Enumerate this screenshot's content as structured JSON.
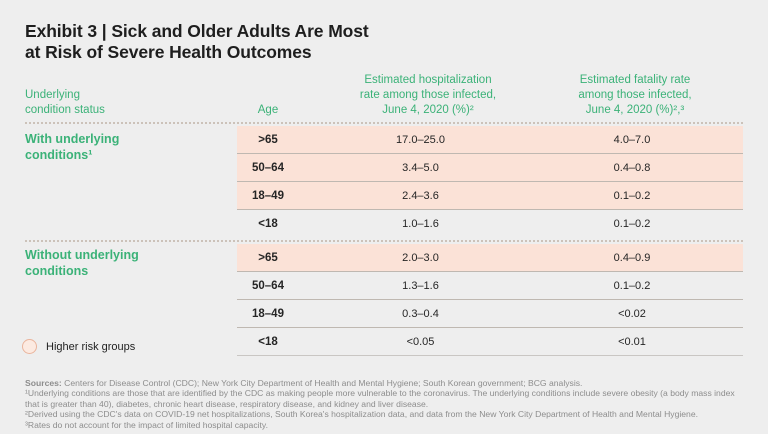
{
  "title": "Exhibit 3 | Sick and Older Adults Are Most\nat Risk of Severe Health Outcomes",
  "colors": {
    "accent_green": "#3bb278",
    "highlight_pink": "#fbe2d7",
    "page_background": "#eeeeee"
  },
  "chart_data": {
    "type": "table",
    "title": "Exhibit 3 | Sick and Older Adults Are Most at Risk of Severe Health Outcomes",
    "column_headers": {
      "condition_status": "Underlying\ncondition status",
      "age": "Age",
      "hospitalization": "Estimated hospitalization\nrate among those infected,\nJune 4, 2020 (%)²",
      "fatality": "Estimated fatality rate\namong those infected,\nJune 4, 2020 (%)²,³"
    },
    "highlight_meaning": "Higher risk groups",
    "groups": [
      {
        "label": "With underlying\nconditions¹",
        "rows": [
          {
            "age": ">65",
            "hosp": "17.0–25.0",
            "fatality": "4.0–7.0",
            "highlight": true
          },
          {
            "age": "50–64",
            "hosp": "3.4–5.0",
            "fatality": "0.4–0.8",
            "highlight": true
          },
          {
            "age": "18–49",
            "hosp": "2.4–3.6",
            "fatality": "0.1–0.2",
            "highlight": true
          },
          {
            "age": "<18",
            "hosp": "1.0–1.6",
            "fatality": "0.1–0.2",
            "highlight": false
          }
        ]
      },
      {
        "label": "Without underlying\nconditions",
        "rows": [
          {
            "age": ">65",
            "hosp": "2.0–3.0",
            "fatality": "0.4–0.9",
            "highlight": true
          },
          {
            "age": "50–64",
            "hosp": "1.3–1.6",
            "fatality": "0.1–0.2",
            "highlight": false
          },
          {
            "age": "18–49",
            "hosp": "0.3–0.4",
            "fatality": "<0.02",
            "highlight": false
          },
          {
            "age": "<18",
            "hosp": "<0.05",
            "fatality": "<0.01",
            "highlight": false
          }
        ]
      }
    ]
  },
  "legend": {
    "higher_risk_label": "Higher risk groups"
  },
  "footnotes": {
    "sources_label": "Sources:",
    "sources_text": " Centers for Disease Control (CDC); New York City Department of Health and Mental Hygiene; South Korean government; BCG analysis.",
    "notes": [
      "¹Underlying conditions are those that are identified by the CDC as making people more vulnerable to the coronavirus. The underlying conditions include severe obesity (a body mass index that is greater than 40), diabetes, chronic heart disease, respiratory disease, and kidney and liver disease.",
      "²Derived using the CDC's data on COVID-19 net hospitalizations, South Korea's hospitalization data, and data from the New York City Department of Health and Mental Hygiene.",
      "³Rates do not account for the impact of limited hospital capacity."
    ]
  }
}
